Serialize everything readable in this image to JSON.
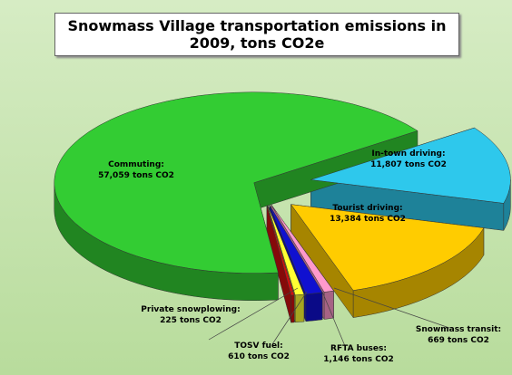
{
  "chart_data": {
    "type": "pie3d",
    "title": "Snowmass Village transportation emissions in 2009, tons CO2e",
    "categories": [
      "In-town driving:",
      "Tourist driving:",
      "Snowmass transit:",
      "RFTA buses:",
      "TOSV fuel:",
      "Private snowplowing:",
      "Commuting:"
    ],
    "values": [
      11807,
      13384,
      669,
      1146,
      610,
      225,
      57059
    ],
    "value_labels": [
      "11,807 tons CO2",
      "13,384 tons CO2",
      "669 tons CO2",
      "1,146 tons CO2",
      "610 tons CO2",
      "225 tons CO2",
      "57,059 tons CO2"
    ],
    "colors": [
      "#2ec8ec",
      "#ffcc00",
      "#ff99cc",
      "#1010d0",
      "#ffff33",
      "#cc1010",
      "#33cc33"
    ]
  }
}
